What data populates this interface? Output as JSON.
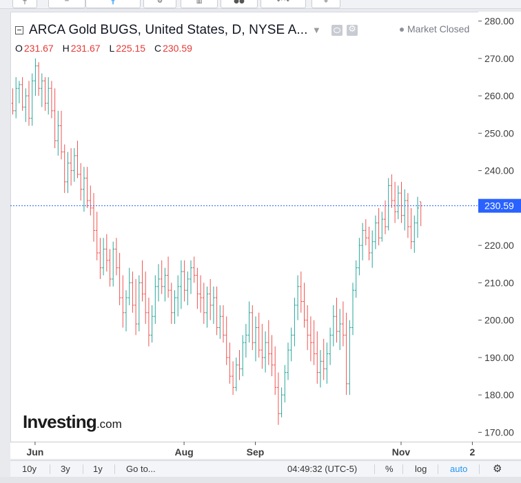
{
  "header": {
    "title": "ARCA Gold BUGS, United States, D, NYSE A...",
    "market_status": "Market Closed",
    "ohlc": {
      "o_label": "O",
      "o": "231.67",
      "h_label": "H",
      "h": "231.67",
      "l_label": "L",
      "l": "225.15",
      "c_label": "C",
      "c": "230.59"
    }
  },
  "logo": {
    "brand": "Investing",
    "suffix": ".com"
  },
  "last_price_label": "230.59",
  "bottom_bar": {
    "range_10y": "10y",
    "range_3y": "3y",
    "range_1y": "1y",
    "goto": "Go to...",
    "clock": "04:49:32 (UTC-5)",
    "percent": "%",
    "log": "log",
    "auto": "auto"
  },
  "icons": {
    "collapse": "collapse-icon",
    "visibility": "eye-icon",
    "settings": "gear-icon",
    "market_dot": "dot-icon",
    "bottom_settings": "gear-icon"
  },
  "colors": {
    "up": "#26a69a",
    "down": "#ef5350",
    "last_line": "#2962ff",
    "last_label_bg": "#2962ff",
    "ohlc_values": "#e53935",
    "auto": "#2196f3"
  },
  "chart_data": {
    "type": "ohlc",
    "title": "ARCA Gold BUGS, United States, D, NYSE A...",
    "y_ticks": [
      170,
      180,
      190,
      200,
      210,
      220,
      230,
      240,
      250,
      260,
      270,
      280
    ],
    "ylim": [
      167.5,
      282.5
    ],
    "x_ticks": [
      {
        "label": "Jun",
        "bar": 7
      },
      {
        "label": "Aug",
        "bar": 53
      },
      {
        "label": "Sep",
        "bar": 75
      },
      {
        "label": "Nov",
        "bar": 120
      },
      {
        "label": "2",
        "bar": 142
      }
    ],
    "last_price": 230.59,
    "bars": [
      [
        258,
        262,
        255,
        256
      ],
      [
        256,
        265,
        254,
        262
      ],
      [
        262,
        264,
        258,
        263
      ],
      [
        263,
        265,
        256,
        257
      ],
      [
        257,
        262,
        253,
        260
      ],
      [
        260,
        264,
        252,
        254
      ],
      [
        254,
        266,
        252,
        264
      ],
      [
        264,
        270,
        260,
        268
      ],
      [
        268,
        269,
        260,
        262
      ],
      [
        262,
        266,
        257,
        264
      ],
      [
        264,
        265,
        256,
        258
      ],
      [
        258,
        265,
        255,
        262
      ],
      [
        262,
        264,
        254,
        256
      ],
      [
        256,
        262,
        246,
        248
      ],
      [
        248,
        256,
        244,
        252
      ],
      [
        252,
        256,
        243,
        245
      ],
      [
        245,
        247,
        234,
        237
      ],
      [
        237,
        245,
        234,
        242
      ],
      [
        242,
        246,
        236,
        240
      ],
      [
        240,
        246,
        237,
        244
      ],
      [
        244,
        248,
        238,
        239
      ],
      [
        239,
        242,
        232,
        235
      ],
      [
        235,
        241,
        229,
        238
      ],
      [
        238,
        241,
        230,
        232
      ],
      [
        232,
        236,
        228,
        230
      ],
      [
        230,
        234,
        221,
        224
      ],
      [
        224,
        229,
        216,
        218
      ],
      [
        218,
        222,
        211,
        214
      ],
      [
        214,
        222,
        212,
        219
      ],
      [
        219,
        223,
        213,
        216
      ],
      [
        216,
        219,
        209,
        211
      ],
      [
        211,
        221,
        209,
        219
      ],
      [
        219,
        222,
        212,
        214
      ],
      [
        214,
        218,
        204,
        206
      ],
      [
        206,
        212,
        198,
        202
      ],
      [
        202,
        208,
        197,
        206
      ],
      [
        206,
        214,
        204,
        210
      ],
      [
        210,
        213,
        202,
        204
      ],
      [
        204,
        211,
        196,
        199
      ],
      [
        199,
        212,
        197,
        210
      ],
      [
        210,
        216,
        205,
        207
      ],
      [
        207,
        213,
        199,
        202
      ],
      [
        202,
        206,
        193,
        196
      ],
      [
        196,
        204,
        194,
        201
      ],
      [
        201,
        212,
        199,
        209
      ],
      [
        209,
        215,
        205,
        211
      ],
      [
        211,
        216,
        207,
        209
      ],
      [
        209,
        214,
        205,
        212
      ],
      [
        212,
        217,
        206,
        208
      ],
      [
        208,
        210,
        199,
        202
      ],
      [
        202,
        208,
        199,
        206
      ],
      [
        206,
        212,
        201,
        209
      ],
      [
        209,
        216,
        203,
        213
      ],
      [
        213,
        216,
        205,
        208
      ],
      [
        208,
        213,
        204,
        211
      ],
      [
        211,
        216,
        207,
        214
      ],
      [
        214,
        217,
        210,
        212
      ],
      [
        212,
        214,
        203,
        207
      ],
      [
        207,
        212,
        202,
        206
      ],
      [
        206,
        210,
        199,
        202
      ],
      [
        202,
        209,
        198,
        207
      ],
      [
        207,
        211,
        200,
        204
      ],
      [
        204,
        209,
        199,
        206
      ],
      [
        206,
        209,
        196,
        198
      ],
      [
        198,
        204,
        195,
        201
      ],
      [
        201,
        204,
        194,
        196
      ],
      [
        196,
        201,
        188,
        190
      ],
      [
        190,
        194,
        183,
        185
      ],
      [
        185,
        189,
        180,
        182
      ],
      [
        182,
        190,
        181,
        188
      ],
      [
        188,
        192,
        184,
        187
      ],
      [
        187,
        196,
        185,
        194
      ],
      [
        194,
        199,
        190,
        196
      ],
      [
        196,
        205,
        194,
        202
      ],
      [
        202,
        204,
        192,
        194
      ],
      [
        194,
        201,
        189,
        198
      ],
      [
        198,
        202,
        190,
        192
      ],
      [
        192,
        199,
        187,
        190
      ],
      [
        190,
        197,
        186,
        194
      ],
      [
        194,
        200,
        188,
        191
      ],
      [
        191,
        196,
        185,
        188
      ],
      [
        188,
        193,
        180,
        182
      ],
      [
        182,
        186,
        172,
        175
      ],
      [
        175,
        182,
        174,
        180
      ],
      [
        180,
        188,
        178,
        186
      ],
      [
        186,
        194,
        184,
        192
      ],
      [
        192,
        198,
        189,
        196
      ],
      [
        196,
        206,
        193,
        204
      ],
      [
        204,
        212,
        200,
        209
      ],
      [
        209,
        213,
        202,
        205
      ],
      [
        205,
        210,
        198,
        200
      ],
      [
        200,
        204,
        192,
        196
      ],
      [
        196,
        201,
        189,
        194
      ],
      [
        194,
        200,
        188,
        191
      ],
      [
        191,
        197,
        183,
        186
      ],
      [
        186,
        192,
        182,
        189
      ],
      [
        189,
        195,
        184,
        187
      ],
      [
        187,
        194,
        183,
        191
      ],
      [
        191,
        198,
        188,
        196
      ],
      [
        196,
        204,
        193,
        201
      ],
      [
        201,
        206,
        194,
        197
      ],
      [
        197,
        203,
        192,
        199
      ],
      [
        199,
        205,
        193,
        196
      ],
      [
        196,
        202,
        180,
        183
      ],
      [
        183,
        200,
        180,
        198
      ],
      [
        198,
        210,
        196,
        208
      ],
      [
        208,
        216,
        206,
        214
      ],
      [
        214,
        222,
        212,
        220
      ],
      [
        220,
        226,
        216,
        224
      ],
      [
        224,
        227,
        220,
        222
      ],
      [
        222,
        225,
        216,
        218
      ],
      [
        218,
        224,
        214,
        221
      ],
      [
        221,
        228,
        219,
        226
      ],
      [
        226,
        230,
        220,
        222
      ],
      [
        222,
        229,
        221,
        227
      ],
      [
        227,
        232,
        223,
        225
      ],
      [
        225,
        238,
        224,
        236
      ],
      [
        236,
        239,
        230,
        232
      ],
      [
        232,
        237,
        226,
        229
      ],
      [
        229,
        236,
        227,
        234
      ],
      [
        234,
        237,
        226,
        228
      ],
      [
        228,
        235,
        224,
        232
      ],
      [
        232,
        234,
        222,
        225
      ],
      [
        225,
        230,
        219,
        221
      ],
      [
        221,
        228,
        218,
        226
      ],
      [
        226,
        233,
        222,
        230
      ],
      [
        231.67,
        231.67,
        225.15,
        230.59
      ]
    ]
  }
}
